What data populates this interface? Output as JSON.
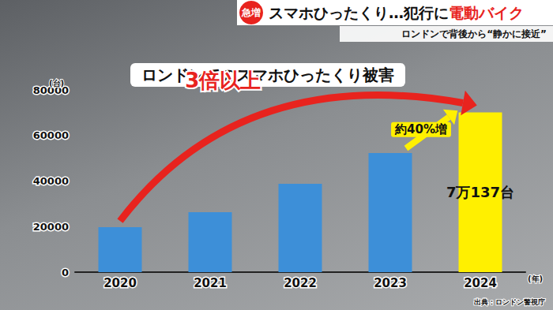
{
  "header": {
    "badge": "急増",
    "headline": [
      "スマホひったくり…犯行に",
      "電動バイク"
    ],
    "subheadline": "ロンドンで背後から“静かに接近”"
  },
  "chart_data": {
    "type": "bar",
    "title": "ロンドンでのスマホひったくり被害",
    "ylabel": "(台)",
    "xlabel": "(年)",
    "source": "出典：ロンドン警視庁",
    "categories": [
      "2020",
      "2021",
      "2022",
      "2023",
      "2024"
    ],
    "values": [
      19700,
      26300,
      38800,
      52300,
      70137
    ],
    "value_labels": [
      null,
      null,
      null,
      null,
      "7万137台"
    ],
    "data_labels": true,
    "colors": [
      "#3d8fd8",
      "#3d8fd8",
      "#3d8fd8",
      "#3d8fd8",
      "#fff000"
    ],
    "annotations": [
      "3倍以上",
      "約40%増"
    ],
    "ylim": [
      0,
      80000
    ],
    "yticks": [
      0,
      20000,
      40000,
      60000,
      80000
    ],
    "grid": false
  }
}
